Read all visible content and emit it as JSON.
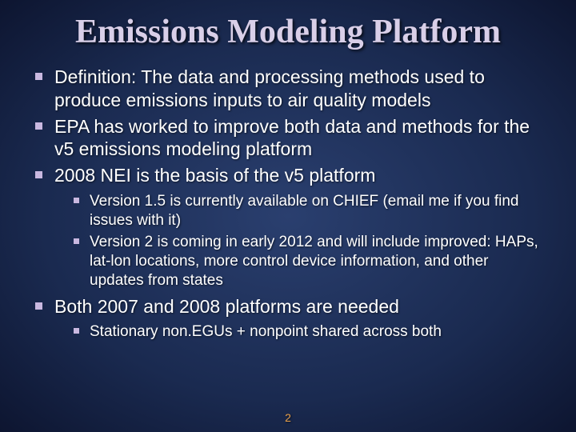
{
  "slide": {
    "title": "Emissions Modeling Platform",
    "title_fontsize": 42,
    "title_color": "#d9cfe8",
    "body_color": "#ffffff",
    "bullet_color": "#c9b8e0",
    "background_gradient": {
      "center": "#2a3f6f",
      "mid": "#1a2a50",
      "edge": "#0d1530"
    },
    "l1_fontsize": 23,
    "l2_fontsize": 19,
    "page_number": "2",
    "page_number_color": "#e8a04a",
    "bullets": [
      {
        "text": "Definition: The data and processing methods used to produce emissions inputs to air quality models"
      },
      {
        "text": "EPA has worked to improve both data and methods for the v5 emissions modeling platform"
      },
      {
        "text": "2008 NEI is the basis of the v5 platform",
        "children": [
          {
            "text": "Version 1.5 is currently available on CHIEF (email me if you find issues with it)"
          },
          {
            "text": "Version 2 is coming in early 2012 and will include improved: HAPs, lat-lon locations, more control device information, and other updates from states"
          }
        ]
      },
      {
        "text": "Both 2007 and 2008 platforms are needed",
        "children": [
          {
            "text": "Stationary non.EGUs + nonpoint shared across both"
          }
        ]
      }
    ]
  }
}
